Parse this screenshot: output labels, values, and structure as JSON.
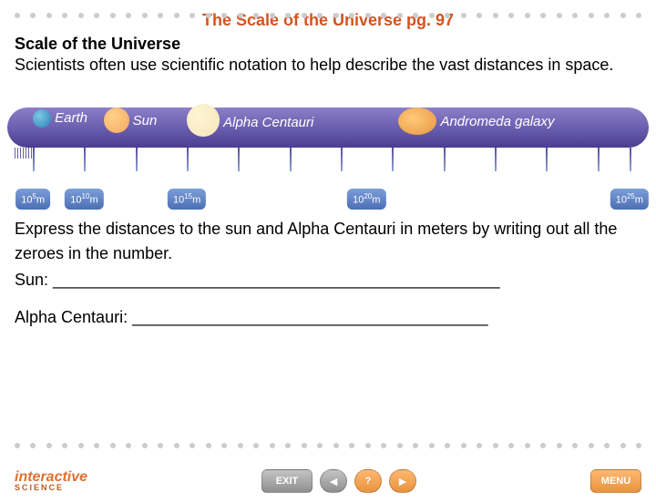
{
  "title": "The Scale of the Universe pg. 97",
  "subheading": "Scale of the Universe",
  "intro": "Scientists often use scientific notation to help describe the vast distances in space.",
  "objects": [
    {
      "name": "Earth",
      "left_pct": 4,
      "class": "earth-c"
    },
    {
      "name": "Sun",
      "left_pct": 15,
      "class": "sun-c"
    },
    {
      "name": "Alpha Centauri",
      "left_pct": 28,
      "class": "ac-c"
    },
    {
      "name": "Andromeda galaxy",
      "left_pct": 61,
      "class": "ag-c"
    }
  ],
  "ticks": [
    4,
    12,
    20,
    28,
    36,
    44,
    52,
    60,
    68,
    76,
    84,
    92,
    97
  ],
  "scale_labels": [
    {
      "text": "10",
      "sup": "5",
      "unit": "m",
      "left_pct": 4
    },
    {
      "text": "10",
      "sup": "10",
      "unit": "m",
      "left_pct": 12
    },
    {
      "text": "10",
      "sup": "15",
      "unit": "m",
      "left_pct": 28
    },
    {
      "text": "10",
      "sup": "20",
      "unit": "m",
      "left_pct": 56
    },
    {
      "text": "10",
      "sup": "25",
      "unit": "m",
      "left_pct": 97
    }
  ],
  "prompt": "Express the distances to the sun and Alpha Centauri in meters by writing out all the zeroes in the number.",
  "sun_label": "Sun: _________________________________________________",
  "ac_label": "Alpha Centauri: _______________________________________",
  "logo": {
    "main": "interactive",
    "sub": "SCIENCE"
  },
  "nav": {
    "exit": "EXIT",
    "help": "?",
    "menu": "MENU"
  },
  "colors": {
    "title": "#d4531f",
    "bar_top": "#8b7fc7",
    "bar_bot": "#4a3d8f"
  }
}
